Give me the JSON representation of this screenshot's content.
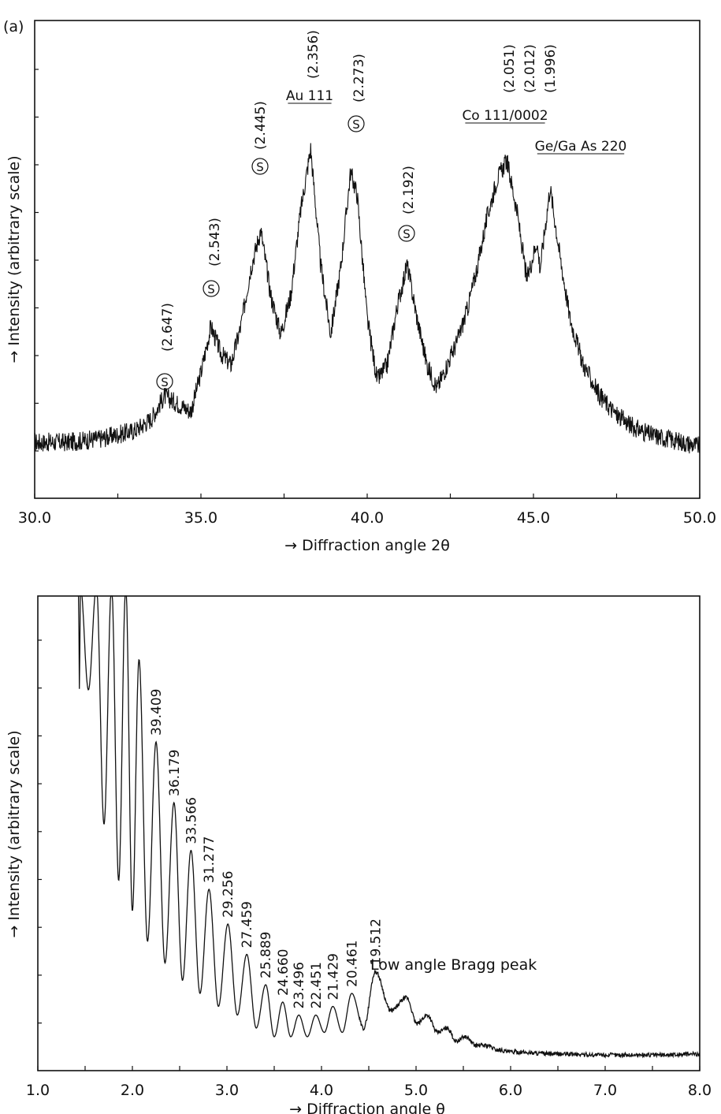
{
  "panel_label": "(a)",
  "chart_data": [
    {
      "type": "line",
      "xlabel": "→ Diffraction angle 2θ",
      "ylabel": "→ Intensity (arbitrary scale)",
      "xlim": [
        30.0,
        50.0
      ],
      "x_ticks": [
        "30.0",
        "35.0",
        "40.0",
        "45.0",
        "50.0"
      ],
      "y_ticks": "unlabeled",
      "grid": false,
      "x": [
        30,
        31,
        32,
        33,
        33.5,
        33.9,
        34.3,
        34.7,
        35.0,
        35.3,
        35.6,
        35.9,
        36.2,
        36.5,
        36.8,
        37.1,
        37.4,
        37.7,
        38.0,
        38.3,
        38.6,
        38.9,
        39.2,
        39.5,
        39.7,
        40.0,
        40.3,
        40.6,
        40.9,
        41.2,
        41.5,
        41.8,
        42.1,
        42.4,
        42.7,
        43.0,
        43.3,
        43.6,
        43.9,
        44.2,
        44.5,
        44.8,
        45.1,
        45.2,
        45.3,
        45.5,
        45.8,
        46.1,
        46.5,
        47,
        47.5,
        48,
        48.5,
        49,
        49.5,
        50
      ],
      "y": [
        0.1,
        0.1,
        0.11,
        0.13,
        0.16,
        0.22,
        0.2,
        0.18,
        0.28,
        0.4,
        0.33,
        0.3,
        0.4,
        0.55,
        0.65,
        0.48,
        0.38,
        0.48,
        0.7,
        0.86,
        0.56,
        0.38,
        0.55,
        0.8,
        0.74,
        0.42,
        0.26,
        0.3,
        0.45,
        0.56,
        0.42,
        0.3,
        0.24,
        0.3,
        0.36,
        0.44,
        0.55,
        0.68,
        0.78,
        0.83,
        0.7,
        0.52,
        0.62,
        0.55,
        0.62,
        0.76,
        0.58,
        0.42,
        0.3,
        0.22,
        0.17,
        0.14,
        0.12,
        0.11,
        0.1,
        0.09
      ],
      "annotations": [
        {
          "text": "(2.647)",
          "x": 33.85,
          "marker": "Ⓢ"
        },
        {
          "text": "(2.543)",
          "x": 35.35,
          "marker": "Ⓢ"
        },
        {
          "text": "(2.445)",
          "x": 36.8,
          "marker": "Ⓢ"
        },
        {
          "text": "Au 111",
          "x": 38.2,
          "underlined": true
        },
        {
          "text": "(2.356)",
          "x": 38.2
        },
        {
          "text": "(2.273)",
          "x": 39.75,
          "marker": "Ⓢ"
        },
        {
          "text": "(2.192)",
          "x": 41.2,
          "marker": "Ⓢ"
        },
        {
          "text": "Co 111/0002",
          "x": 44.2,
          "underlined": true
        },
        {
          "text": "(2.051)",
          "x": 44.2
        },
        {
          "text": "(2.012)",
          "x": 44.2
        },
        {
          "text": "(1.996)",
          "x": 44.2
        },
        {
          "text": "Ge/Ga As 220",
          "x": 45.5,
          "underlined": true
        }
      ]
    },
    {
      "type": "line",
      "xlabel": "→ Diffraction angle θ",
      "ylabel": "→ Intensity (arbitrary scale)",
      "xlim": [
        1.0,
        8.0
      ],
      "x_ticks": [
        "1.0",
        "2.0",
        "3.0",
        "4.0",
        "5.0",
        "6.0",
        "7.0",
        "8.0"
      ],
      "y_ticks": "unlabeled",
      "grid": false,
      "fringes": [
        {
          "peak_x": 1.45,
          "peak_y": 1.1,
          "min_y": 0.86
        },
        {
          "peak_x": 1.62,
          "peak_y": 1.1,
          "min_y": 0.55
        },
        {
          "peak_x": 1.78,
          "peak_y": 1.1,
          "min_y": 0.42
        },
        {
          "peak_x": 1.93,
          "peak_y": 1.1,
          "min_y": 0.35
        },
        {
          "peak_x": 2.07,
          "peak_y": 0.93,
          "min_y": 0.28
        },
        {
          "peak_x": 2.25,
          "peak_y": 0.74,
          "min_y": 0.23
        },
        {
          "peak_x": 2.44,
          "peak_y": 0.6,
          "min_y": 0.19
        },
        {
          "peak_x": 2.62,
          "peak_y": 0.49,
          "min_y": 0.16
        },
        {
          "peak_x": 2.81,
          "peak_y": 0.4,
          "min_y": 0.13
        },
        {
          "peak_x": 3.01,
          "peak_y": 0.32,
          "min_y": 0.11
        },
        {
          "peak_x": 3.21,
          "peak_y": 0.25,
          "min_y": 0.08
        },
        {
          "peak_x": 3.41,
          "peak_y": 0.18,
          "min_y": 0.06
        },
        {
          "peak_x": 3.59,
          "peak_y": 0.14,
          "min_y": 0.06
        },
        {
          "peak_x": 3.76,
          "peak_y": 0.11,
          "min_y": 0.06
        },
        {
          "peak_x": 3.94,
          "peak_y": 0.11,
          "min_y": 0.07
        },
        {
          "peak_x": 4.12,
          "peak_y": 0.13,
          "min_y": 0.07
        },
        {
          "peak_x": 4.32,
          "peak_y": 0.16,
          "min_y": 0.08
        },
        {
          "peak_x": 4.57,
          "peak_y": 0.21,
          "min_y": 0.12
        },
        {
          "peak_x": 4.9,
          "peak_y": 0.15,
          "min_y": 0.09
        },
        {
          "peak_x": 5.12,
          "peak_y": 0.11,
          "min_y": 0.07
        },
        {
          "peak_x": 5.33,
          "peak_y": 0.08,
          "min_y": 0.05
        },
        {
          "peak_x": 5.52,
          "peak_y": 0.06,
          "min_y": 0.04
        },
        {
          "peak_x": 5.75,
          "peak_y": 0.04,
          "min_y": 0.03
        }
      ],
      "tail": {
        "x": [
          6.0,
          6.5,
          7.0,
          7.5,
          8.0
        ],
        "y": [
          0.025,
          0.02,
          0.018,
          0.018,
          0.02
        ]
      },
      "peak_labels": [
        {
          "text": "39.409",
          "x": 2.25
        },
        {
          "text": "36.179",
          "x": 2.44
        },
        {
          "text": "33.566",
          "x": 2.62
        },
        {
          "text": "31.277",
          "x": 2.81
        },
        {
          "text": "29.256",
          "x": 3.01
        },
        {
          "text": "27.459",
          "x": 3.21
        },
        {
          "text": "25.889",
          "x": 3.41
        },
        {
          "text": "24.660",
          "x": 3.59
        },
        {
          "text": "23.496",
          "x": 3.76
        },
        {
          "text": "22.451",
          "x": 3.94
        },
        {
          "text": "21.429",
          "x": 4.12
        },
        {
          "text": "20.461",
          "x": 4.32
        },
        {
          "text": "19.512",
          "x": 4.57
        }
      ],
      "annotation": "Low angle Bragg peak"
    }
  ]
}
